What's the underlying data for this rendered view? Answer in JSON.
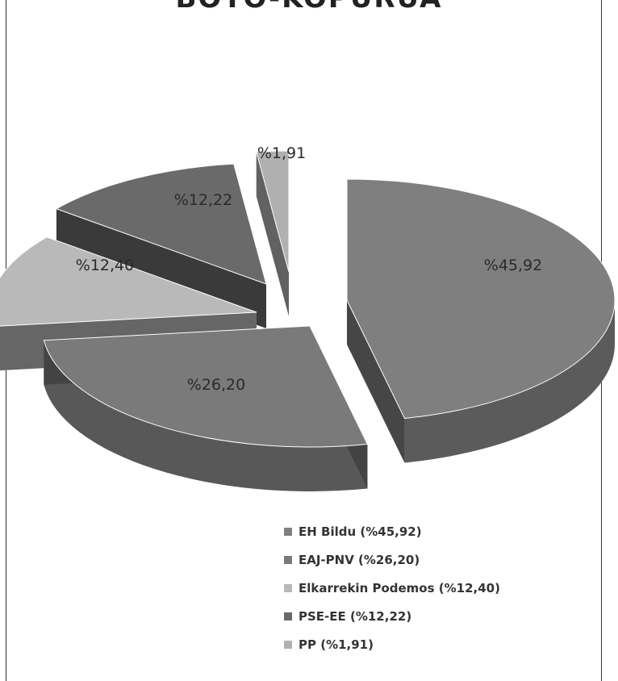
{
  "chart_data": {
    "type": "pie",
    "title": "BOTO-KOPURUA",
    "categories": [
      "EH Bildu",
      "EAJ-PNV",
      "Elkarrekin Podemos",
      "PSE-EE",
      "PP"
    ],
    "values": [
      45.92,
      26.2,
      12.4,
      12.22,
      1.91
    ],
    "data_labels": [
      "%45,92",
      "%26,20",
      "%12,40",
      "%12,22",
      "%1,91"
    ],
    "legend": [
      "EH Bildu (%45,92)",
      "EAJ-PNV (%26,20)",
      "Elkarrekin Podemos (%12,40)",
      "PSE-EE (%12,22)",
      "PP (%1,91)"
    ],
    "legend_placement": "bottom",
    "style": "3d-exploded",
    "colors": [
      "#7f7f7f",
      "#7a7a7a",
      "#b9b9b9",
      "#6a6a6a",
      "#b0b0b0"
    ]
  }
}
